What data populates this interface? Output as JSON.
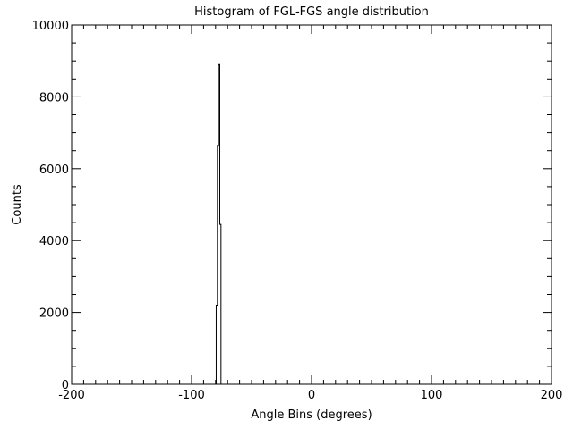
{
  "chart_data": {
    "type": "bar",
    "title": "Histogram of FGL-FGS angle distribution",
    "xlabel": "Angle Bins (degrees)",
    "ylabel": "Counts",
    "xlim": [
      -200,
      200
    ],
    "ylim": [
      0,
      10000
    ],
    "xticks": [
      "-200",
      "-100",
      "0",
      "100",
      "200"
    ],
    "yticks": [
      "0",
      "2000",
      "4000",
      "6000",
      "8000",
      "10000"
    ],
    "bins": [
      -80,
      -79,
      -78,
      -77,
      -76,
      -75
    ],
    "values": [
      0,
      2200,
      6650,
      8900,
      4450,
      0
    ],
    "grid": false,
    "color": "#000000"
  }
}
